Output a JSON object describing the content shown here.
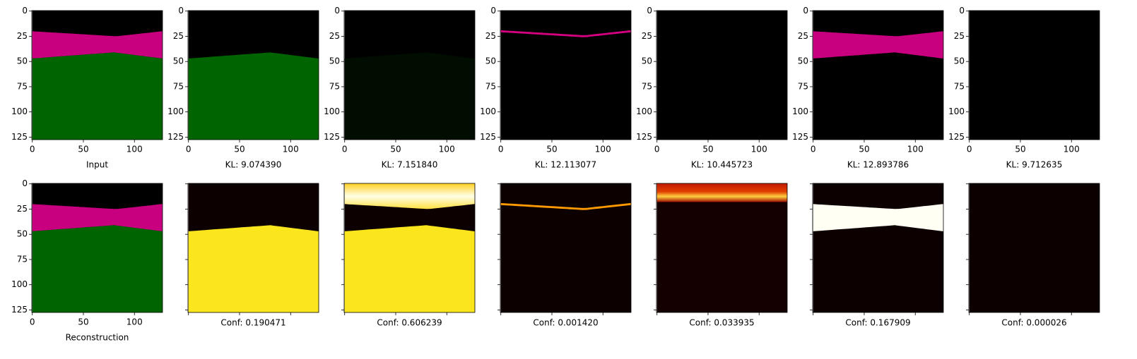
{
  "top_row": {
    "labels": [
      "Input",
      "KL: 9.074390",
      "KL: 7.151840",
      "KL: 12.113077",
      "KL: 10.445723",
      "KL: 12.893786",
      "KL: 9.712635"
    ]
  },
  "bottom_row": {
    "labels": [
      "Reconstruction",
      "Conf: 0.190471",
      "Conf: 0.606239",
      "Conf: 0.001420",
      "Conf: 0.033935",
      "Conf: 0.167909",
      "Conf: 0.000026"
    ]
  },
  "xticks": [
    0,
    50,
    100
  ],
  "yticks": [
    0,
    25,
    50,
    75,
    100,
    125
  ]
}
